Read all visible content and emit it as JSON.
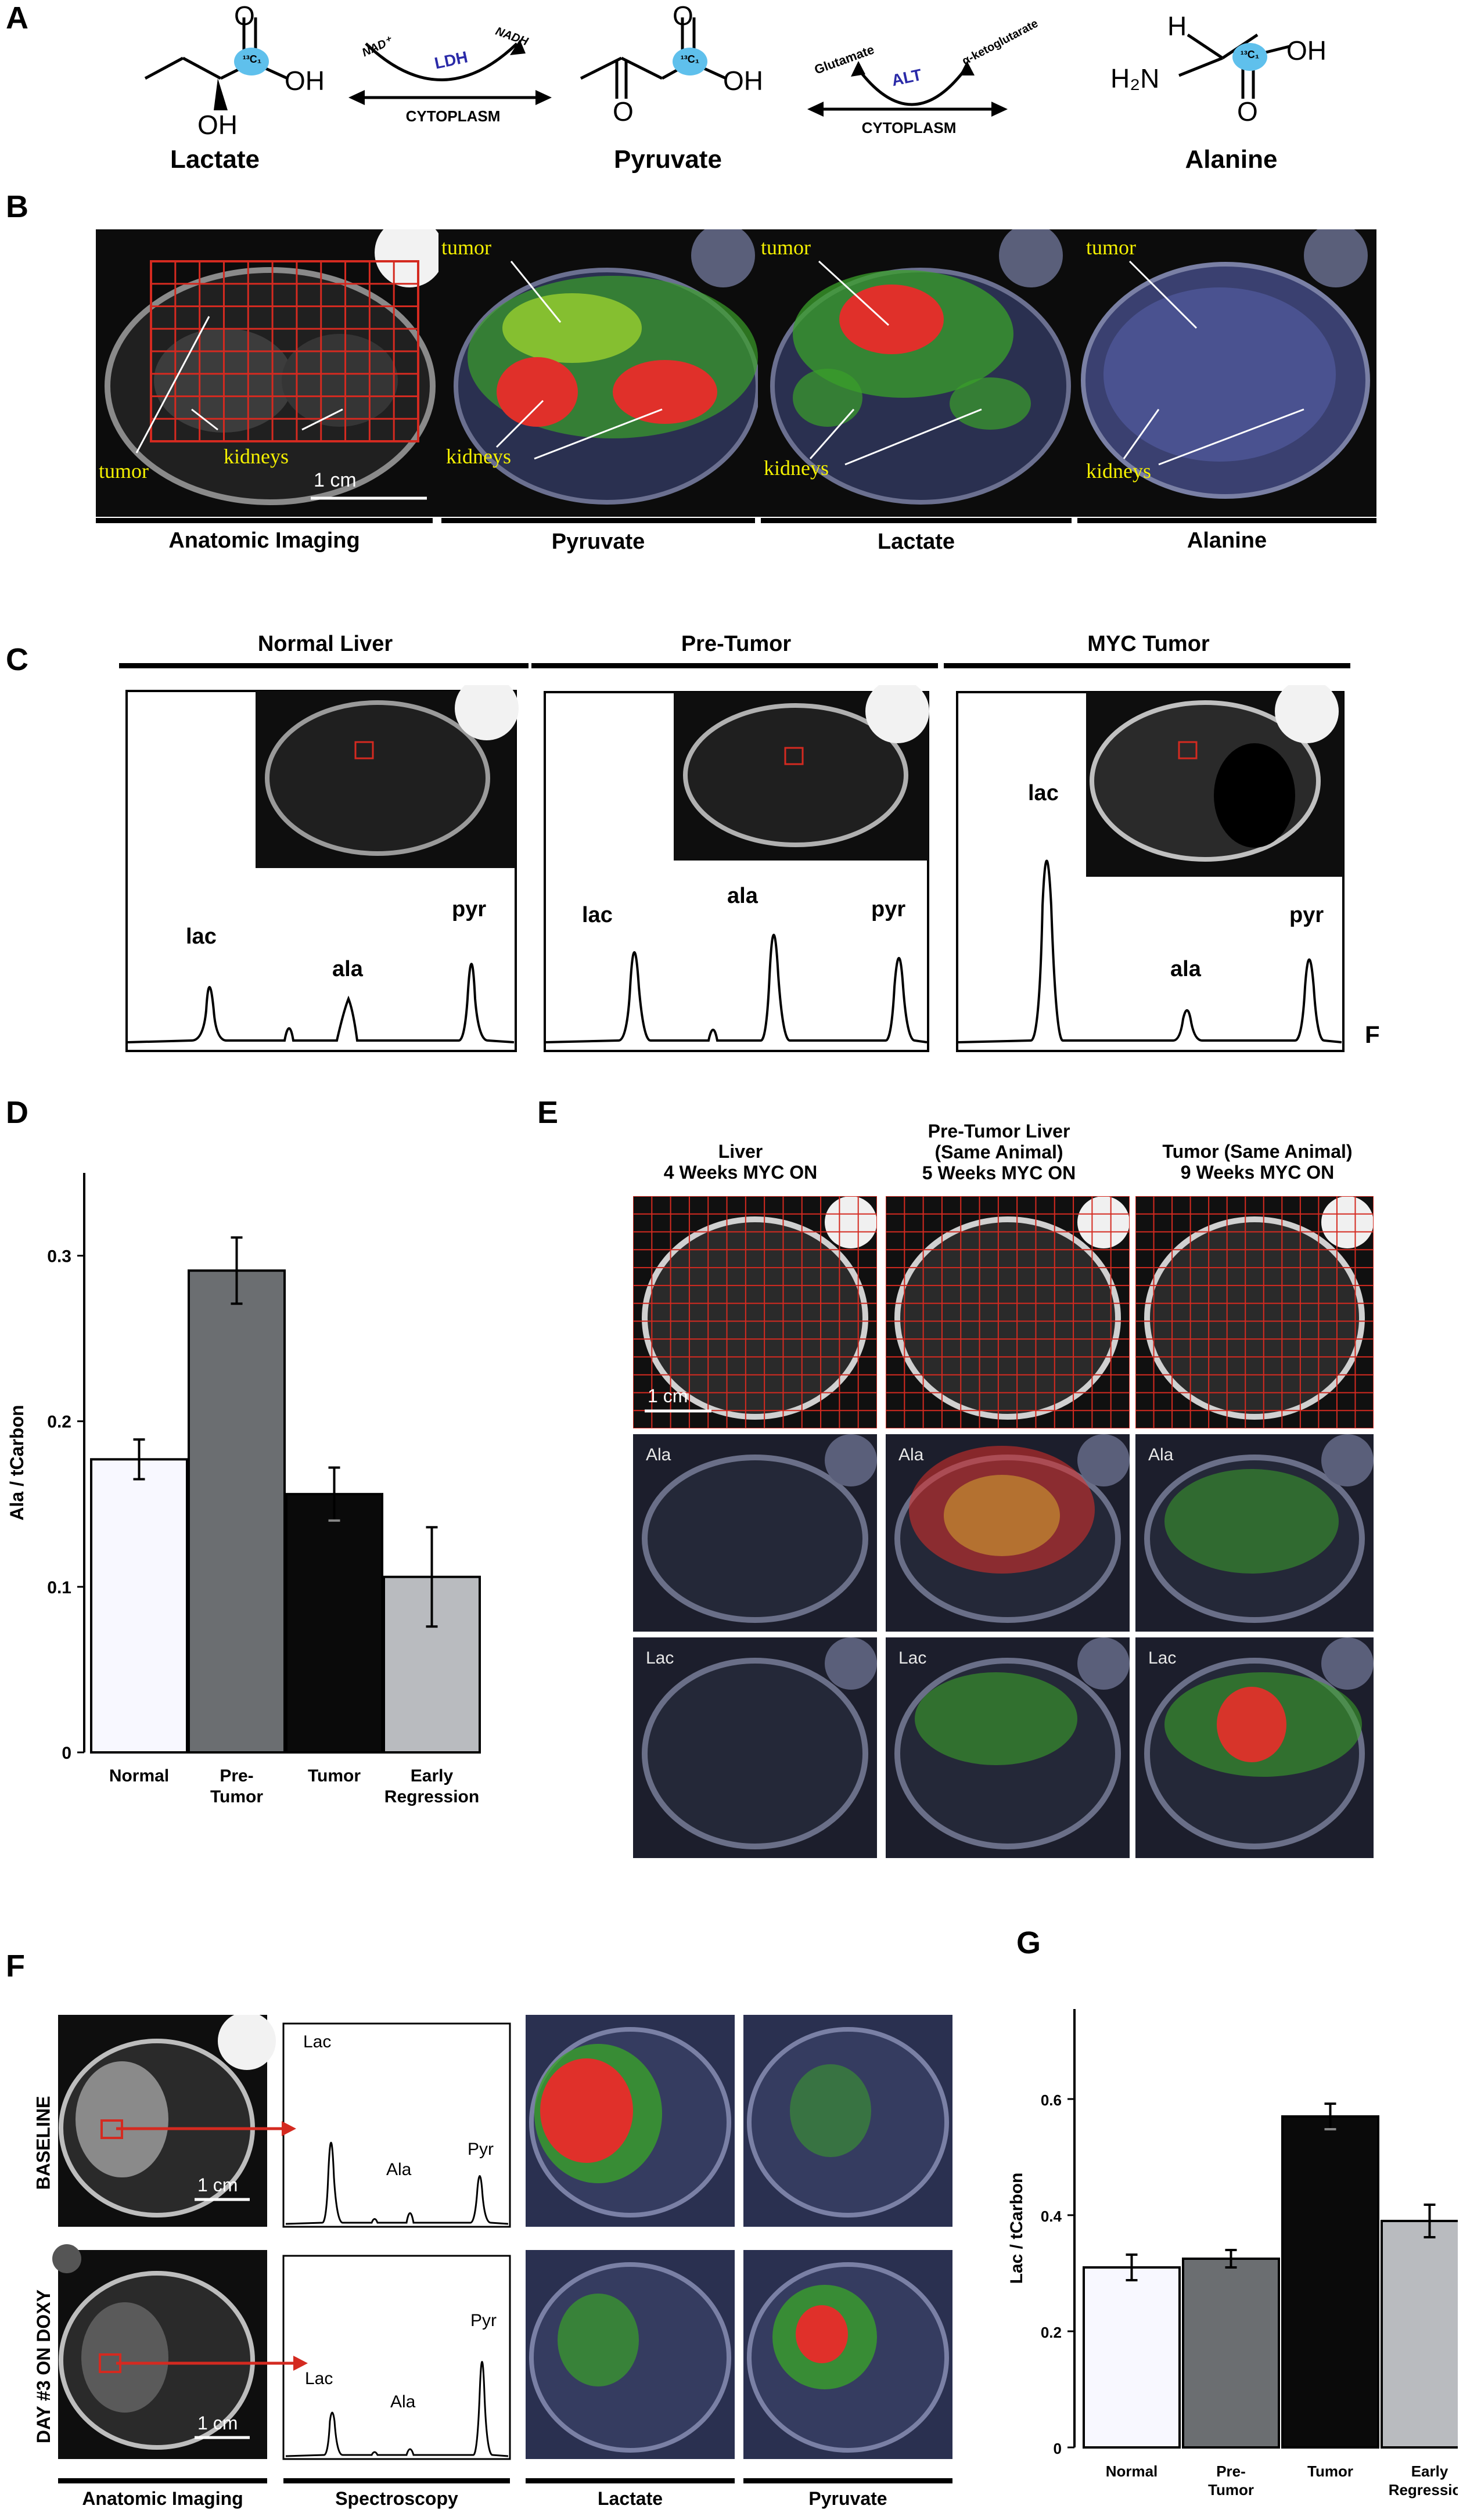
{
  "panels": {
    "A": "A",
    "B": "B",
    "C": "C",
    "D": "D",
    "E": "E",
    "F": "F",
    "G": "G"
  },
  "reaction": {
    "lactate": "Lactate",
    "pyruvate": "Pyruvate",
    "alanine": "Alanine",
    "nad": "NAD⁺",
    "nadh": "NADH",
    "ldh": "LDH",
    "cytoplasm": "CYTOPLASM",
    "glutamate": "Glutamate",
    "alt": "ALT",
    "aketo": "α-ketoglutarate",
    "oh": "OH",
    "o": "O",
    "h": "H",
    "h2n": "H₂N",
    "c13": "¹³C₁"
  },
  "panelB": {
    "captions": [
      "Anatomic Imaging",
      "Pyruvate",
      "Lactate",
      "Alanine"
    ],
    "tumor": "tumor",
    "kidneys": "kidneys",
    "scale": "1 cm"
  },
  "panelC": {
    "titles": [
      "Normal Liver",
      "Pre-Tumor",
      "MYC Tumor"
    ],
    "peaks": {
      "lac": "lac",
      "ala": "ala",
      "pyr": "pyr"
    },
    "side_letter": "F"
  },
  "panelE": {
    "col_titles": [
      [
        "Liver",
        "4 Weeks MYC ON"
      ],
      [
        "Pre-Tumor Liver",
        "(Same Animal)",
        "5 Weeks MYC ON"
      ],
      [
        "Tumor (Same Animal)",
        "9 Weeks MYC ON"
      ]
    ],
    "row_ala": "Ala",
    "row_lac": "Lac",
    "scale": "1 cm"
  },
  "panelF": {
    "rows": [
      "BASELINE",
      "DAY #3 ON DOXY"
    ],
    "captions": [
      "Anatomic Imaging",
      "Spectroscopy",
      "Lactate",
      "Pyruvate"
    ],
    "peaks": {
      "lac": "Lac",
      "ala": "Ala",
      "pyr": "Pyr"
    },
    "scale": "1 cm"
  },
  "chart_data": [
    {
      "type": "bar",
      "panel": "D",
      "categories": [
        "Normal",
        "Pre-Tumor",
        "Tumor",
        "Early Regression"
      ],
      "values": [
        0.177,
        0.291,
        0.156,
        0.106
      ],
      "errors": [
        0.012,
        0.02,
        0.016,
        0.03
      ],
      "ylabel": "Ala / tCarbon",
      "ylim": [
        0,
        0.35
      ],
      "yticks": [
        0,
        0.1,
        0.2,
        0.3
      ],
      "ytick_labels": [
        "0",
        "0.1",
        "0.2",
        "0.3"
      ],
      "colors": [
        "#f8f8ff",
        "#6b6e71",
        "#0a0a0a",
        "#b9bbbf"
      ]
    },
    {
      "type": "bar",
      "panel": "G",
      "categories": [
        "Normal",
        "Pre-Tumor",
        "Tumor",
        "Early Regression"
      ],
      "values": [
        0.31,
        0.325,
        0.57,
        0.39
      ],
      "errors": [
        0.022,
        0.015,
        0.022,
        0.028
      ],
      "ylabel": "Lac / tCarbon",
      "ylim": [
        0,
        0.62
      ],
      "yticks": [
        0,
        0.2,
        0.4,
        0.6
      ],
      "ytick_labels": [
        "0",
        "0.2",
        "0.4",
        "0.6"
      ],
      "colors": [
        "#f8f8ff",
        "#6b6e71",
        "#0a0a0a",
        "#b9bbbf"
      ]
    }
  ]
}
